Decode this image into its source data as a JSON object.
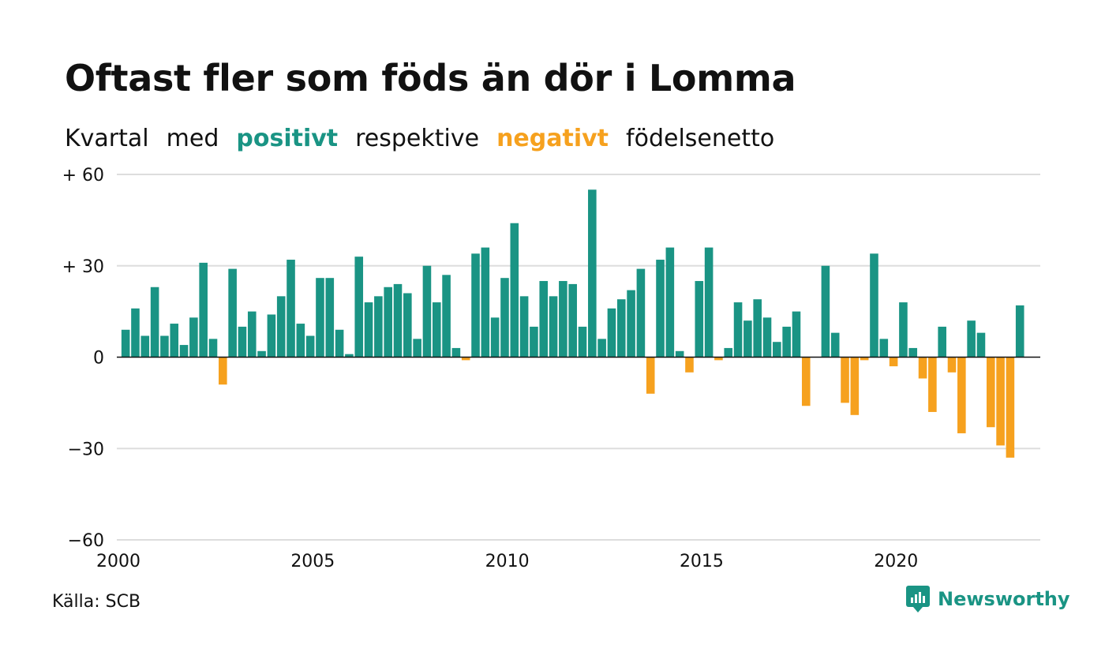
{
  "title": "Oftast fler som föds än dör i Lomma",
  "subtitle": {
    "part1": "Kvartal",
    "part2": "med",
    "positive": "positivt",
    "part3": "respektive",
    "negative": "negativt",
    "part4": "födelsenetto"
  },
  "source": "Källa: SCB",
  "brand": {
    "name": "Newsworthy",
    "icon": "newsworthy-logo-icon"
  },
  "colors": {
    "positive": "#1a9484",
    "negative": "#f6a11e",
    "grid": "#dddddd",
    "text": "#111111"
  },
  "chart_data": {
    "type": "bar",
    "x_start": 2000,
    "x_step": 0.25,
    "xlim": [
      2000,
      2023.75
    ],
    "ylim": [
      -60,
      60
    ],
    "y_ticks": [
      60,
      30,
      0,
      -30,
      -60
    ],
    "y_tick_labels": [
      "+ 60",
      "+ 30",
      "0",
      "−30",
      "−60"
    ],
    "x_ticks": [
      2000,
      2005,
      2010,
      2015,
      2020
    ],
    "x_tick_labels": [
      "2000",
      "2005",
      "2010",
      "2015",
      "2020"
    ],
    "grid": true,
    "values": [
      9,
      16,
      7,
      23,
      7,
      11,
      4,
      13,
      31,
      6,
      -9,
      29,
      10,
      15,
      2,
      14,
      20,
      32,
      11,
      7,
      26,
      26,
      9,
      1,
      33,
      18,
      20,
      23,
      24,
      21,
      6,
      30,
      18,
      27,
      3,
      -1,
      34,
      36,
      13,
      26,
      44,
      20,
      10,
      25,
      20,
      25,
      24,
      10,
      55,
      6,
      16,
      19,
      22,
      29,
      -12,
      32,
      36,
      2,
      -5,
      25,
      36,
      -1,
      3,
      18,
      12,
      19,
      13,
      5,
      10,
      15,
      -16,
      0,
      30,
      8,
      -15,
      -19,
      -1,
      34,
      6,
      -3,
      18,
      3,
      -7,
      -18,
      10,
      -5,
      -25,
      12,
      8,
      -23,
      -29,
      -33,
      17
    ]
  }
}
